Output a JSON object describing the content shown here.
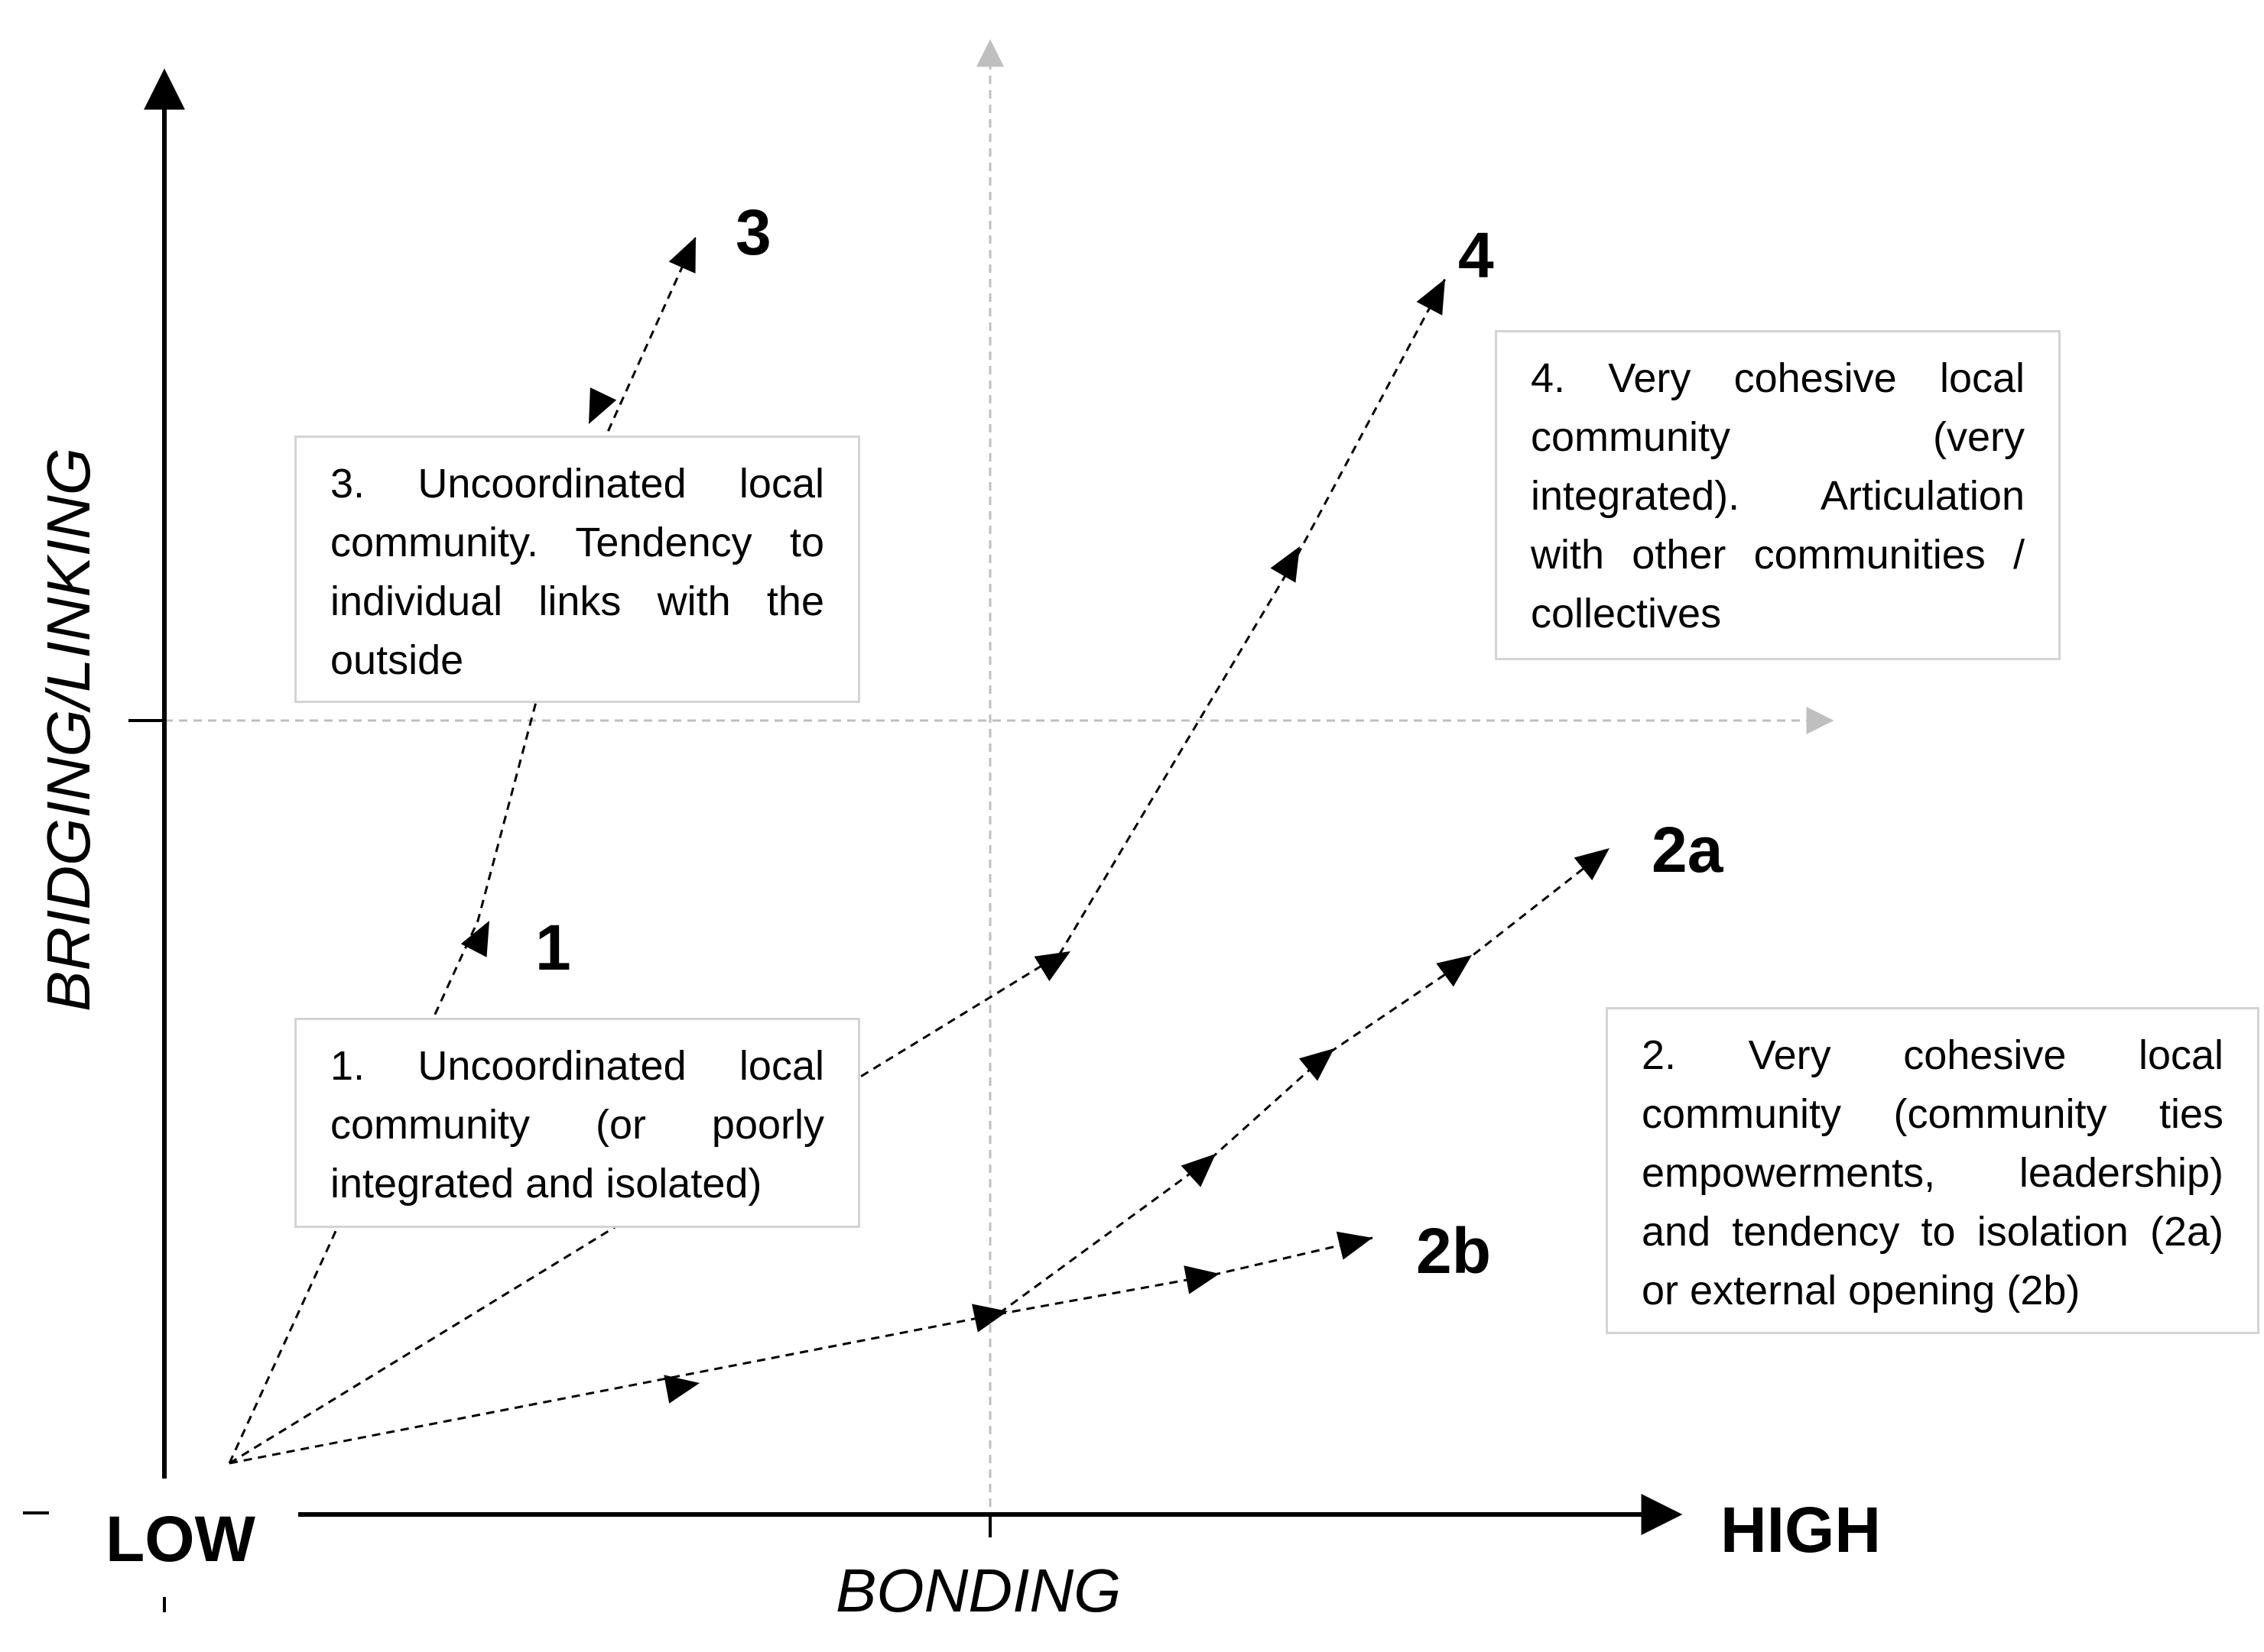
{
  "axes": {
    "x_title": "BONDING",
    "y_title": "BRIDGING/LINKING",
    "low_label": "LOW",
    "high_label": "HIGH"
  },
  "trajectories": {
    "t1": "1",
    "t2a": "2a",
    "t2b": "2b",
    "t3": "3",
    "t4": "4"
  },
  "boxes": {
    "box1": "1. Uncoordinated local community (or poorly integrated and isolated)",
    "box2": "2. Very cohesive local community (community ties empowerments, leadership) and tendency to isolation (2a) or external opening (2b)",
    "box3": "3. Uncoordinated local community. Tendency to individual links with the outside",
    "box4": "4. Very cohesive local community (very integrated). Articulation with other communities / collectives"
  },
  "colors": {
    "axis": "#000000",
    "guide": "#bfbfbf",
    "box_border": "#d4d4d4",
    "path": "#000000"
  }
}
